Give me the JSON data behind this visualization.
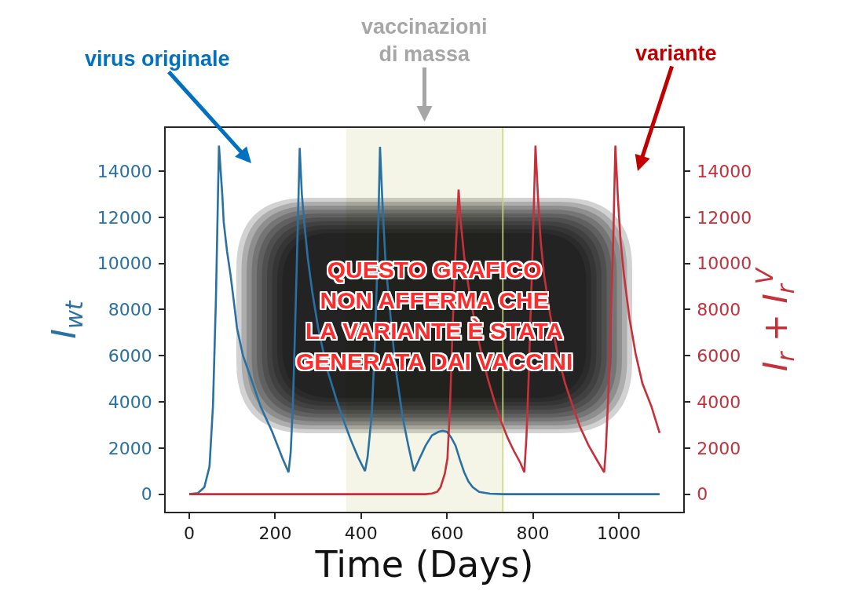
{
  "chart_data": {
    "type": "line",
    "xlabel": "Time (Days)",
    "ylabel": "I$_{wt}$",
    "y2label": "I$_{r}$ + I$_{r}$$^{V}$",
    "annotations": [
      "virus originale",
      "variante",
      "QUESTO GRAFICO\nNON AFFERMA CHE\nLA VARIANTE È STATA\nGENERATA DAI VACCINI"
    ],
    "xlim": [
      -55,
      1150
    ],
    "xticks": [
      0,
      200,
      400,
      600,
      800,
      1000
    ],
    "ylim": [
      -760,
      15870
    ],
    "yticks": [
      0,
      2000,
      4000,
      6000,
      8000,
      10000,
      12000,
      14000
    ],
    "y2lim": [
      -760,
      15870
    ],
    "y2ticks": [
      0,
      2000,
      4000,
      6000,
      8000,
      10000,
      12000,
      14000
    ],
    "bands": [
      {
        "axis": "x",
        "from": 365,
        "to": 730,
        "label": "vaccinazioni\ndi massa",
        "color": "#f5f5e7"
      }
    ],
    "ref_lines": [
      {
        "axis": "x",
        "value": 730,
        "color": "#cdd57c"
      }
    ],
    "series": [
      {
        "color": "#2a71a3",
        "x": [
          0,
          20,
          35,
          47,
          55,
          62,
          69,
          77,
          80,
          88,
          96,
          104,
          111,
          125,
          144,
          166,
          193,
          217,
          231,
          236,
          241,
          246,
          251,
          257,
          262,
          269,
          276,
          286,
          300,
          321,
          345,
          363,
          376,
          393,
          409,
          415,
          425,
          432,
          438,
          444,
          450,
          457,
          467,
          480,
          497,
          510,
          523,
          535,
          550,
          565,
          580,
          590,
          600,
          610,
          620,
          630,
          640,
          650,
          660,
          675,
          700,
          730,
          800,
          900,
          1000,
          1095
        ],
        "values": [
          0,
          50,
          300,
          1200,
          3800,
          8500,
          15100,
          12900,
          11800,
          10500,
          9500,
          8300,
          7200,
          6000,
          5000,
          3800,
          2700,
          1550,
          950,
          1800,
          3800,
          7000,
          10500,
          15000,
          13000,
          11500,
          10200,
          8800,
          7200,
          5400,
          3950,
          3000,
          2350,
          1600,
          1000,
          1600,
          3500,
          6500,
          10000,
          15050,
          12500,
          10000,
          8000,
          5500,
          3300,
          2100,
          1000,
          1500,
          2100,
          2550,
          2700,
          2750,
          2700,
          2450,
          2100,
          1500,
          950,
          550,
          300,
          100,
          20,
          0,
          0,
          0,
          0,
          0
        ]
      },
      {
        "color": "#c6303a",
        "axis": "y2",
        "x": [
          0,
          550,
          565,
          577,
          585,
          595,
          601,
          607,
          613,
          620,
          627,
          632,
          640,
          650,
          665,
          680,
          695,
          710,
          725,
          741,
          755,
          771,
          780,
          785,
          790,
          795,
          800,
          806,
          812,
          818,
          826,
          840,
          857,
          875,
          893,
          910,
          930,
          950,
          966,
          970,
          976,
          982,
          987,
          992,
          998,
          1004,
          1012,
          1025,
          1039,
          1055,
          1076,
          1095
        ],
        "values": [
          0,
          0,
          30,
          100,
          300,
          900,
          1550,
          3800,
          7200,
          10500,
          13200,
          11800,
          10300,
          9000,
          7400,
          6100,
          5000,
          4050,
          3200,
          2450,
          1900,
          1350,
          950,
          2500,
          5000,
          8000,
          11000,
          15100,
          12800,
          11000,
          9500,
          7800,
          6100,
          4800,
          3800,
          2900,
          2100,
          1450,
          950,
          2000,
          4500,
          8000,
          11000,
          15100,
          12800,
          11000,
          9500,
          7600,
          6100,
          4800,
          3800,
          2650
        ]
      }
    ]
  }
}
